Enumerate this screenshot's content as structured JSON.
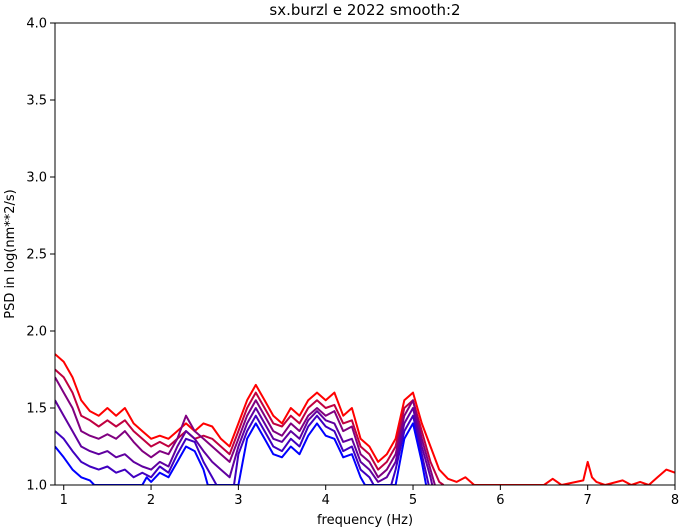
{
  "chart_data": {
    "type": "line",
    "title": "sx.burzl e 2022 smooth:2",
    "xlabel": "frequency (Hz)",
    "ylabel": "PSD in log(nm**2/s)",
    "xlim": [
      0.9,
      8.0
    ],
    "ylim": [
      1.0,
      4.0
    ],
    "x_ticks": [
      1,
      2,
      3,
      4,
      5,
      6,
      7,
      8
    ],
    "y_ticks": [
      1.0,
      1.5,
      2.0,
      2.5,
      3.0,
      3.5,
      4.0
    ],
    "x_tick_labels": [
      "1",
      "2",
      "3",
      "4",
      "5",
      "6",
      "7",
      "8"
    ],
    "y_tick_labels": [
      "1.0",
      "1.5",
      "2.0",
      "2.5",
      "3.0",
      "3.5",
      "4.0"
    ],
    "grid": false,
    "series": [
      {
        "color": "#ff0000",
        "points": [
          [
            0.9,
            1.85
          ],
          [
            1.0,
            1.8
          ],
          [
            1.1,
            1.7
          ],
          [
            1.2,
            1.55
          ],
          [
            1.3,
            1.48
          ],
          [
            1.4,
            1.45
          ],
          [
            1.5,
            1.5
          ],
          [
            1.6,
            1.45
          ],
          [
            1.7,
            1.5
          ],
          [
            1.8,
            1.4
          ],
          [
            1.9,
            1.35
          ],
          [
            2.0,
            1.3
          ],
          [
            2.1,
            1.32
          ],
          [
            2.2,
            1.3
          ],
          [
            2.3,
            1.35
          ],
          [
            2.4,
            1.4
          ],
          [
            2.5,
            1.35
          ],
          [
            2.6,
            1.4
          ],
          [
            2.7,
            1.38
          ],
          [
            2.8,
            1.3
          ],
          [
            2.9,
            1.25
          ],
          [
            3.0,
            1.4
          ],
          [
            3.1,
            1.55
          ],
          [
            3.2,
            1.65
          ],
          [
            3.3,
            1.55
          ],
          [
            3.4,
            1.45
          ],
          [
            3.5,
            1.4
          ],
          [
            3.6,
            1.5
          ],
          [
            3.7,
            1.45
          ],
          [
            3.8,
            1.55
          ],
          [
            3.9,
            1.6
          ],
          [
            4.0,
            1.55
          ],
          [
            4.1,
            1.6
          ],
          [
            4.2,
            1.45
          ],
          [
            4.3,
            1.5
          ],
          [
            4.4,
            1.3
          ],
          [
            4.5,
            1.25
          ],
          [
            4.6,
            1.15
          ],
          [
            4.7,
            1.2
          ],
          [
            4.8,
            1.3
          ],
          [
            4.9,
            1.55
          ],
          [
            5.0,
            1.6
          ],
          [
            5.1,
            1.4
          ],
          [
            5.2,
            1.25
          ],
          [
            5.3,
            1.1
          ],
          [
            5.4,
            1.04
          ],
          [
            5.5,
            1.02
          ],
          [
            5.6,
            1.05
          ],
          [
            5.7,
            1.0
          ],
          [
            6.5,
            1.0
          ],
          [
            6.6,
            1.04
          ],
          [
            6.7,
            1.0
          ],
          [
            6.95,
            1.03
          ],
          [
            7.0,
            1.15
          ],
          [
            7.05,
            1.05
          ],
          [
            7.1,
            1.02
          ],
          [
            7.2,
            1.0
          ],
          [
            7.4,
            1.03
          ],
          [
            7.5,
            1.0
          ],
          [
            7.6,
            1.02
          ],
          [
            7.7,
            1.0
          ],
          [
            7.8,
            1.05
          ],
          [
            7.9,
            1.1
          ],
          [
            8.0,
            1.08
          ]
        ]
      },
      {
        "color": "#c00040",
        "points": [
          [
            0.9,
            1.75
          ],
          [
            1.0,
            1.7
          ],
          [
            1.1,
            1.6
          ],
          [
            1.2,
            1.45
          ],
          [
            1.3,
            1.42
          ],
          [
            1.4,
            1.38
          ],
          [
            1.5,
            1.42
          ],
          [
            1.6,
            1.38
          ],
          [
            1.7,
            1.42
          ],
          [
            1.8,
            1.35
          ],
          [
            1.9,
            1.3
          ],
          [
            2.0,
            1.25
          ],
          [
            2.1,
            1.28
          ],
          [
            2.2,
            1.25
          ],
          [
            2.3,
            1.3
          ],
          [
            2.4,
            1.35
          ],
          [
            2.5,
            1.3
          ],
          [
            2.6,
            1.32
          ],
          [
            2.7,
            1.3
          ],
          [
            2.8,
            1.25
          ],
          [
            2.9,
            1.2
          ],
          [
            3.0,
            1.35
          ],
          [
            3.1,
            1.5
          ],
          [
            3.2,
            1.6
          ],
          [
            3.3,
            1.5
          ],
          [
            3.4,
            1.4
          ],
          [
            3.5,
            1.38
          ],
          [
            3.6,
            1.45
          ],
          [
            3.7,
            1.4
          ],
          [
            3.8,
            1.5
          ],
          [
            3.9,
            1.55
          ],
          [
            4.0,
            1.5
          ],
          [
            4.1,
            1.52
          ],
          [
            4.2,
            1.4
          ],
          [
            4.3,
            1.42
          ],
          [
            4.4,
            1.25
          ],
          [
            4.5,
            1.2
          ],
          [
            4.6,
            1.1
          ],
          [
            4.7,
            1.15
          ],
          [
            4.8,
            1.25
          ],
          [
            4.9,
            1.5
          ],
          [
            5.0,
            1.55
          ],
          [
            5.1,
            1.35
          ],
          [
            5.2,
            1.15
          ],
          [
            5.3,
            1.02
          ],
          [
            5.35,
            1.0
          ]
        ]
      },
      {
        "color": "#800080",
        "points": [
          [
            0.9,
            1.7
          ],
          [
            1.0,
            1.6
          ],
          [
            1.1,
            1.5
          ],
          [
            1.2,
            1.35
          ],
          [
            1.3,
            1.32
          ],
          [
            1.4,
            1.3
          ],
          [
            1.5,
            1.33
          ],
          [
            1.6,
            1.3
          ],
          [
            1.7,
            1.35
          ],
          [
            1.8,
            1.28
          ],
          [
            1.9,
            1.22
          ],
          [
            2.0,
            1.18
          ],
          [
            2.1,
            1.22
          ],
          [
            2.2,
            1.2
          ],
          [
            2.3,
            1.3
          ],
          [
            2.4,
            1.45
          ],
          [
            2.5,
            1.35
          ],
          [
            2.6,
            1.3
          ],
          [
            2.7,
            1.25
          ],
          [
            2.8,
            1.2
          ],
          [
            2.9,
            1.15
          ],
          [
            3.0,
            1.3
          ],
          [
            3.1,
            1.45
          ],
          [
            3.2,
            1.55
          ],
          [
            3.3,
            1.45
          ],
          [
            3.4,
            1.35
          ],
          [
            3.5,
            1.32
          ],
          [
            3.6,
            1.4
          ],
          [
            3.7,
            1.35
          ],
          [
            3.8,
            1.45
          ],
          [
            3.9,
            1.5
          ],
          [
            4.0,
            1.45
          ],
          [
            4.1,
            1.48
          ],
          [
            4.2,
            1.35
          ],
          [
            4.3,
            1.38
          ],
          [
            4.4,
            1.2
          ],
          [
            4.5,
            1.15
          ],
          [
            4.6,
            1.05
          ],
          [
            4.7,
            1.1
          ],
          [
            4.8,
            1.2
          ],
          [
            4.9,
            1.45
          ],
          [
            5.0,
            1.55
          ],
          [
            5.1,
            1.3
          ],
          [
            5.2,
            1.1
          ],
          [
            5.25,
            1.0
          ]
        ]
      },
      {
        "color": "#6000a0",
        "points": [
          [
            0.9,
            1.55
          ],
          [
            1.0,
            1.45
          ],
          [
            1.1,
            1.35
          ],
          [
            1.2,
            1.25
          ],
          [
            1.3,
            1.22
          ],
          [
            1.4,
            1.2
          ],
          [
            1.5,
            1.22
          ],
          [
            1.6,
            1.18
          ],
          [
            1.7,
            1.2
          ],
          [
            1.8,
            1.15
          ],
          [
            1.9,
            1.12
          ],
          [
            2.0,
            1.1
          ],
          [
            2.1,
            1.15
          ],
          [
            2.2,
            1.12
          ],
          [
            2.3,
            1.25
          ],
          [
            2.4,
            1.35
          ],
          [
            2.5,
            1.3
          ],
          [
            2.6,
            1.22
          ],
          [
            2.7,
            1.15
          ],
          [
            2.8,
            1.1
          ],
          [
            2.9,
            1.05
          ],
          [
            3.0,
            1.25
          ],
          [
            3.1,
            1.4
          ],
          [
            3.2,
            1.5
          ],
          [
            3.3,
            1.4
          ],
          [
            3.4,
            1.3
          ],
          [
            3.5,
            1.28
          ],
          [
            3.6,
            1.35
          ],
          [
            3.7,
            1.3
          ],
          [
            3.8,
            1.42
          ],
          [
            3.9,
            1.48
          ],
          [
            4.0,
            1.42
          ],
          [
            4.1,
            1.4
          ],
          [
            4.2,
            1.28
          ],
          [
            4.3,
            1.3
          ],
          [
            4.4,
            1.15
          ],
          [
            4.5,
            1.1
          ],
          [
            4.6,
            1.02
          ],
          [
            4.7,
            1.05
          ],
          [
            4.8,
            1.15
          ],
          [
            4.9,
            1.4
          ],
          [
            5.0,
            1.5
          ],
          [
            5.1,
            1.25
          ],
          [
            5.2,
            1.05
          ],
          [
            5.22,
            1.0
          ]
        ]
      },
      {
        "color": "#4000c0",
        "points": [
          [
            0.9,
            1.35
          ],
          [
            1.0,
            1.3
          ],
          [
            1.1,
            1.22
          ],
          [
            1.2,
            1.15
          ],
          [
            1.3,
            1.12
          ],
          [
            1.4,
            1.1
          ],
          [
            1.5,
            1.12
          ],
          [
            1.6,
            1.08
          ],
          [
            1.7,
            1.1
          ],
          [
            1.8,
            1.05
          ],
          [
            1.9,
            1.08
          ],
          [
            2.0,
            1.05
          ],
          [
            2.1,
            1.12
          ],
          [
            2.2,
            1.08
          ],
          [
            2.3,
            1.2
          ],
          [
            2.4,
            1.3
          ],
          [
            2.5,
            1.28
          ],
          [
            2.6,
            1.15
          ],
          [
            2.7,
            1.05
          ],
          [
            2.75,
            1.0
          ],
          [
            2.95,
            1.0
          ],
          [
            3.0,
            1.2
          ],
          [
            3.1,
            1.35
          ],
          [
            3.2,
            1.45
          ],
          [
            3.3,
            1.35
          ],
          [
            3.4,
            1.25
          ],
          [
            3.5,
            1.22
          ],
          [
            3.6,
            1.3
          ],
          [
            3.7,
            1.25
          ],
          [
            3.8,
            1.38
          ],
          [
            3.9,
            1.45
          ],
          [
            4.0,
            1.38
          ],
          [
            4.1,
            1.35
          ],
          [
            4.2,
            1.22
          ],
          [
            4.3,
            1.25
          ],
          [
            4.4,
            1.1
          ],
          [
            4.5,
            1.05
          ],
          [
            4.55,
            1.0
          ],
          [
            4.75,
            1.0
          ],
          [
            4.8,
            1.1
          ],
          [
            4.9,
            1.35
          ],
          [
            5.0,
            1.45
          ],
          [
            5.1,
            1.2
          ],
          [
            5.18,
            1.0
          ]
        ]
      },
      {
        "color": "#0000ff",
        "points": [
          [
            0.9,
            1.25
          ],
          [
            1.0,
            1.18
          ],
          [
            1.1,
            1.1
          ],
          [
            1.2,
            1.05
          ],
          [
            1.3,
            1.03
          ],
          [
            1.35,
            1.0
          ],
          [
            1.9,
            1.0
          ],
          [
            1.95,
            1.05
          ],
          [
            2.0,
            1.02
          ],
          [
            2.1,
            1.08
          ],
          [
            2.2,
            1.05
          ],
          [
            2.3,
            1.15
          ],
          [
            2.4,
            1.25
          ],
          [
            2.5,
            1.22
          ],
          [
            2.6,
            1.1
          ],
          [
            2.65,
            1.0
          ],
          [
            3.0,
            1.0
          ],
          [
            3.05,
            1.15
          ],
          [
            3.1,
            1.3
          ],
          [
            3.2,
            1.4
          ],
          [
            3.3,
            1.3
          ],
          [
            3.4,
            1.2
          ],
          [
            3.5,
            1.18
          ],
          [
            3.6,
            1.25
          ],
          [
            3.7,
            1.2
          ],
          [
            3.8,
            1.32
          ],
          [
            3.9,
            1.4
          ],
          [
            4.0,
            1.32
          ],
          [
            4.1,
            1.3
          ],
          [
            4.2,
            1.18
          ],
          [
            4.3,
            1.2
          ],
          [
            4.4,
            1.05
          ],
          [
            4.45,
            1.0
          ],
          [
            4.8,
            1.0
          ],
          [
            4.85,
            1.15
          ],
          [
            4.9,
            1.3
          ],
          [
            5.0,
            1.4
          ],
          [
            5.1,
            1.15
          ],
          [
            5.15,
            1.0
          ]
        ]
      }
    ]
  }
}
